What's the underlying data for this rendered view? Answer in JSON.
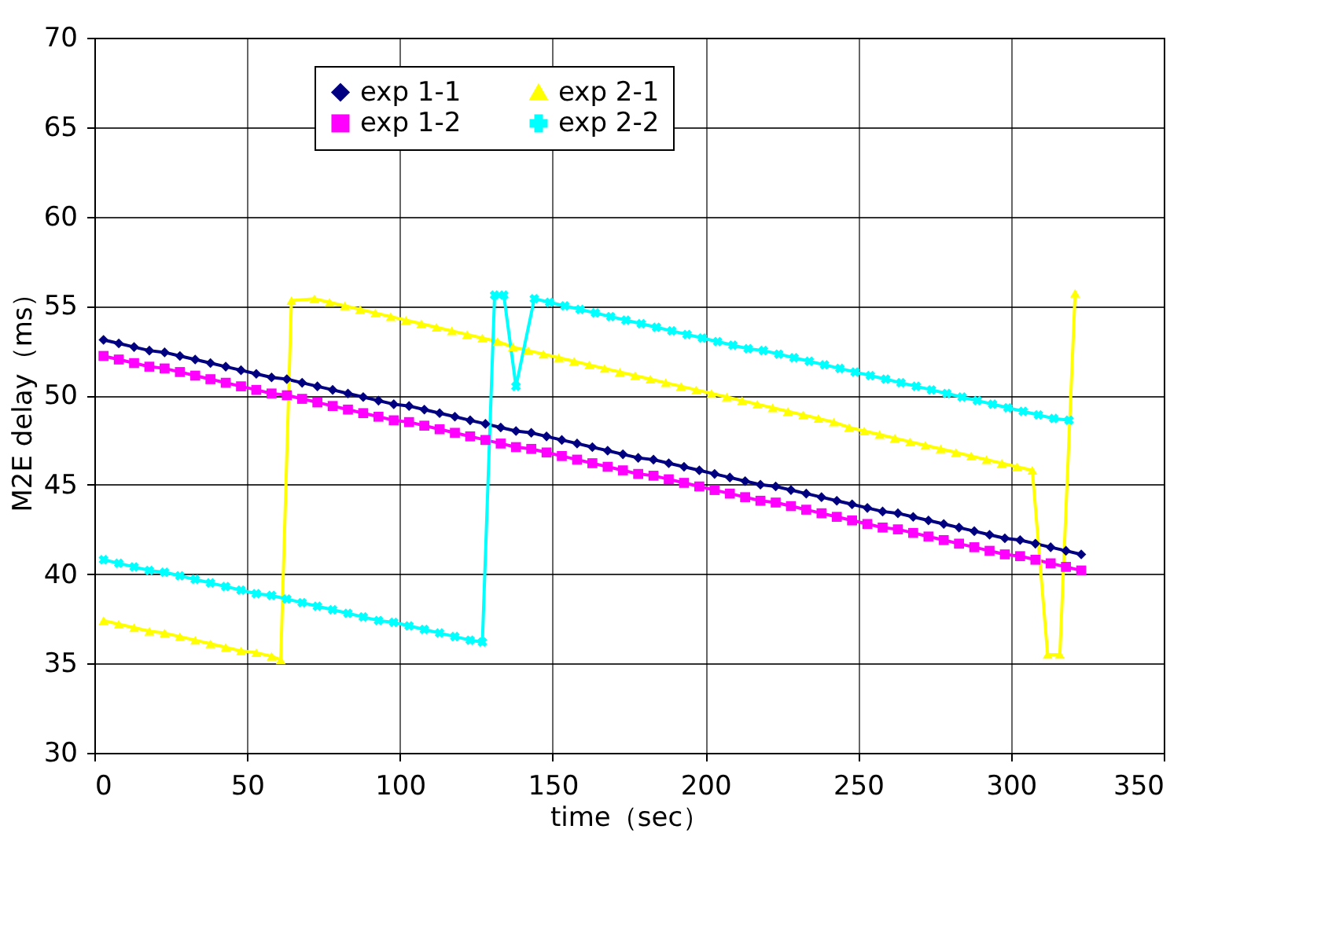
{
  "chart_data": {
    "type": "line",
    "xlabel": "time（sec）",
    "ylabel": "M2E delay（ms）",
    "xlim": [
      0,
      350
    ],
    "xticks": [
      0,
      50,
      100,
      150,
      200,
      250,
      300,
      350
    ],
    "ylim": [
      30,
      70
    ],
    "yticks": [
      30,
      35,
      40,
      45,
      50,
      55,
      60,
      65,
      70
    ],
    "grid": true,
    "legend": "top",
    "line_style": "solid",
    "series": [
      {
        "name": "exp 1-1",
        "color": "#000080",
        "marker": "diamond",
        "x": [
          3,
          8,
          13,
          18,
          23,
          28,
          33,
          38,
          43,
          48,
          53,
          58,
          63,
          68,
          73,
          78,
          83,
          88,
          93,
          98,
          103,
          108,
          113,
          118,
          123,
          128,
          133,
          138,
          143,
          148,
          153,
          158,
          163,
          168,
          173,
          178,
          183,
          188,
          193,
          198,
          203,
          208,
          213,
          218,
          223,
          228,
          233,
          238,
          243,
          248,
          253,
          258,
          263,
          268,
          273,
          278,
          283,
          288,
          293,
          298,
          303,
          308,
          313,
          318,
          323
        ],
        "values": [
          53.1,
          52.9,
          52.7,
          52.5,
          52.4,
          52.2,
          52.0,
          51.8,
          51.6,
          51.4,
          51.2,
          51.0,
          50.9,
          50.7,
          50.5,
          50.3,
          50.1,
          49.9,
          49.7,
          49.5,
          49.4,
          49.2,
          49.0,
          48.8,
          48.6,
          48.4,
          48.2,
          48.0,
          47.9,
          47.7,
          47.5,
          47.3,
          47.1,
          46.9,
          46.7,
          46.5,
          46.4,
          46.2,
          46.0,
          45.8,
          45.6,
          45.4,
          45.2,
          45.0,
          44.9,
          44.7,
          44.5,
          44.3,
          44.1,
          43.9,
          43.7,
          43.5,
          43.4,
          43.2,
          43.0,
          42.8,
          42.6,
          42.4,
          42.2,
          42.0,
          41.9,
          41.7,
          41.5,
          41.3,
          41.1
        ]
      },
      {
        "name": "exp 1-2",
        "color": "#ff00ff",
        "marker": "square",
        "x": [
          3,
          8,
          13,
          18,
          23,
          28,
          33,
          38,
          43,
          48,
          53,
          58,
          63,
          68,
          73,
          78,
          83,
          88,
          93,
          98,
          103,
          108,
          113,
          118,
          123,
          128,
          133,
          138,
          143,
          148,
          153,
          158,
          163,
          168,
          173,
          178,
          183,
          188,
          193,
          198,
          203,
          208,
          213,
          218,
          223,
          228,
          233,
          238,
          243,
          248,
          253,
          258,
          263,
          268,
          273,
          278,
          283,
          288,
          293,
          298,
          303,
          308,
          313,
          318,
          323
        ],
        "values": [
          52.2,
          52.0,
          51.8,
          51.6,
          51.5,
          51.3,
          51.1,
          50.9,
          50.7,
          50.5,
          50.3,
          50.1,
          50.0,
          49.8,
          49.6,
          49.4,
          49.2,
          49.0,
          48.8,
          48.6,
          48.5,
          48.3,
          48.1,
          47.9,
          47.7,
          47.5,
          47.3,
          47.1,
          47.0,
          46.8,
          46.6,
          46.4,
          46.2,
          46.0,
          45.8,
          45.6,
          45.5,
          45.3,
          45.1,
          44.9,
          44.7,
          44.5,
          44.3,
          44.1,
          44.0,
          43.8,
          43.6,
          43.4,
          43.2,
          43.0,
          42.8,
          42.6,
          42.5,
          42.3,
          42.1,
          41.9,
          41.7,
          41.5,
          41.3,
          41.1,
          41.0,
          40.8,
          40.6,
          40.4,
          40.2
        ]
      },
      {
        "name": "exp 2-1",
        "color": "#ffff00",
        "marker": "triangle",
        "x": [
          3,
          8,
          13,
          18,
          23,
          28,
          33,
          38,
          43,
          48,
          53,
          58,
          61,
          64.5,
          72,
          77,
          82,
          87,
          92,
          97,
          102,
          107,
          112,
          117,
          122,
          127,
          132,
          137,
          142,
          147,
          152,
          157,
          162,
          167,
          172,
          177,
          182,
          187,
          192,
          197,
          202,
          207,
          212,
          217,
          222,
          227,
          232,
          237,
          242,
          247,
          252,
          257,
          262,
          267,
          272,
          277,
          282,
          287,
          292,
          297,
          302,
          307,
          312,
          316,
          321
        ],
        "values": [
          37.4,
          37.2,
          37.0,
          36.8,
          36.7,
          36.5,
          36.3,
          36.1,
          35.9,
          35.7,
          35.6,
          35.4,
          35.2,
          55.3,
          55.4,
          55.2,
          55.0,
          54.8,
          54.6,
          54.4,
          54.2,
          54.0,
          53.8,
          53.6,
          53.4,
          53.2,
          53.0,
          52.7,
          52.5,
          52.3,
          52.1,
          51.9,
          51.7,
          51.5,
          51.3,
          51.1,
          50.9,
          50.7,
          50.5,
          50.3,
          50.1,
          49.9,
          49.7,
          49.5,
          49.3,
          49.1,
          48.9,
          48.7,
          48.5,
          48.2,
          48.0,
          47.8,
          47.6,
          47.4,
          47.2,
          47.0,
          46.8,
          46.6,
          46.4,
          46.2,
          46.0,
          45.8,
          35.5,
          35.5,
          55.7
        ]
      },
      {
        "name": "exp 2-2",
        "color": "#00ffff",
        "marker": "cross",
        "x": [
          3,
          8,
          13,
          18,
          23,
          28,
          33,
          38,
          43,
          48,
          53,
          58,
          63,
          68,
          73,
          78,
          83,
          88,
          93,
          98,
          103,
          108,
          113,
          118,
          123,
          127,
          131,
          134,
          138,
          144,
          149,
          154,
          159,
          164,
          169,
          174,
          179,
          184,
          189,
          194,
          199,
          204,
          209,
          214,
          219,
          224,
          229,
          234,
          239,
          244,
          249,
          254,
          259,
          264,
          269,
          274,
          279,
          284,
          289,
          294,
          299,
          304,
          309,
          314,
          319
        ],
        "values": [
          40.8,
          40.6,
          40.4,
          40.2,
          40.1,
          39.9,
          39.7,
          39.5,
          39.3,
          39.1,
          38.9,
          38.8,
          38.6,
          38.4,
          38.2,
          38.0,
          37.8,
          37.6,
          37.4,
          37.3,
          37.1,
          36.9,
          36.7,
          36.5,
          36.3,
          36.2,
          55.6,
          55.6,
          50.5,
          55.4,
          55.2,
          55.0,
          54.8,
          54.6,
          54.4,
          54.2,
          54.0,
          53.8,
          53.6,
          53.4,
          53.2,
          53.0,
          52.8,
          52.6,
          52.5,
          52.3,
          52.1,
          51.9,
          51.7,
          51.5,
          51.3,
          51.1,
          50.9,
          50.7,
          50.5,
          50.3,
          50.1,
          49.9,
          49.7,
          49.5,
          49.3,
          49.1,
          48.9,
          48.7,
          48.6
        ]
      }
    ]
  }
}
